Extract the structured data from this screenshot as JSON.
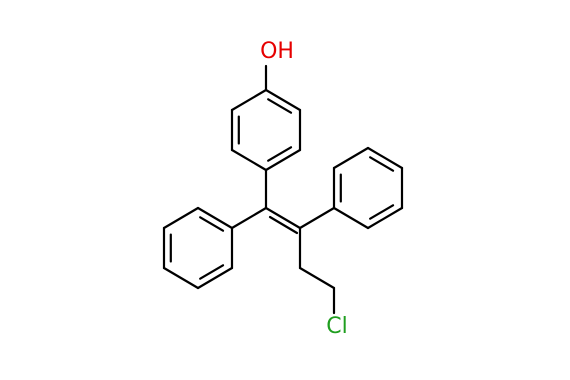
{
  "atoms": [
    {
      "label": "OH"
    },
    {
      "label": "Cl"
    }
  ]
}
